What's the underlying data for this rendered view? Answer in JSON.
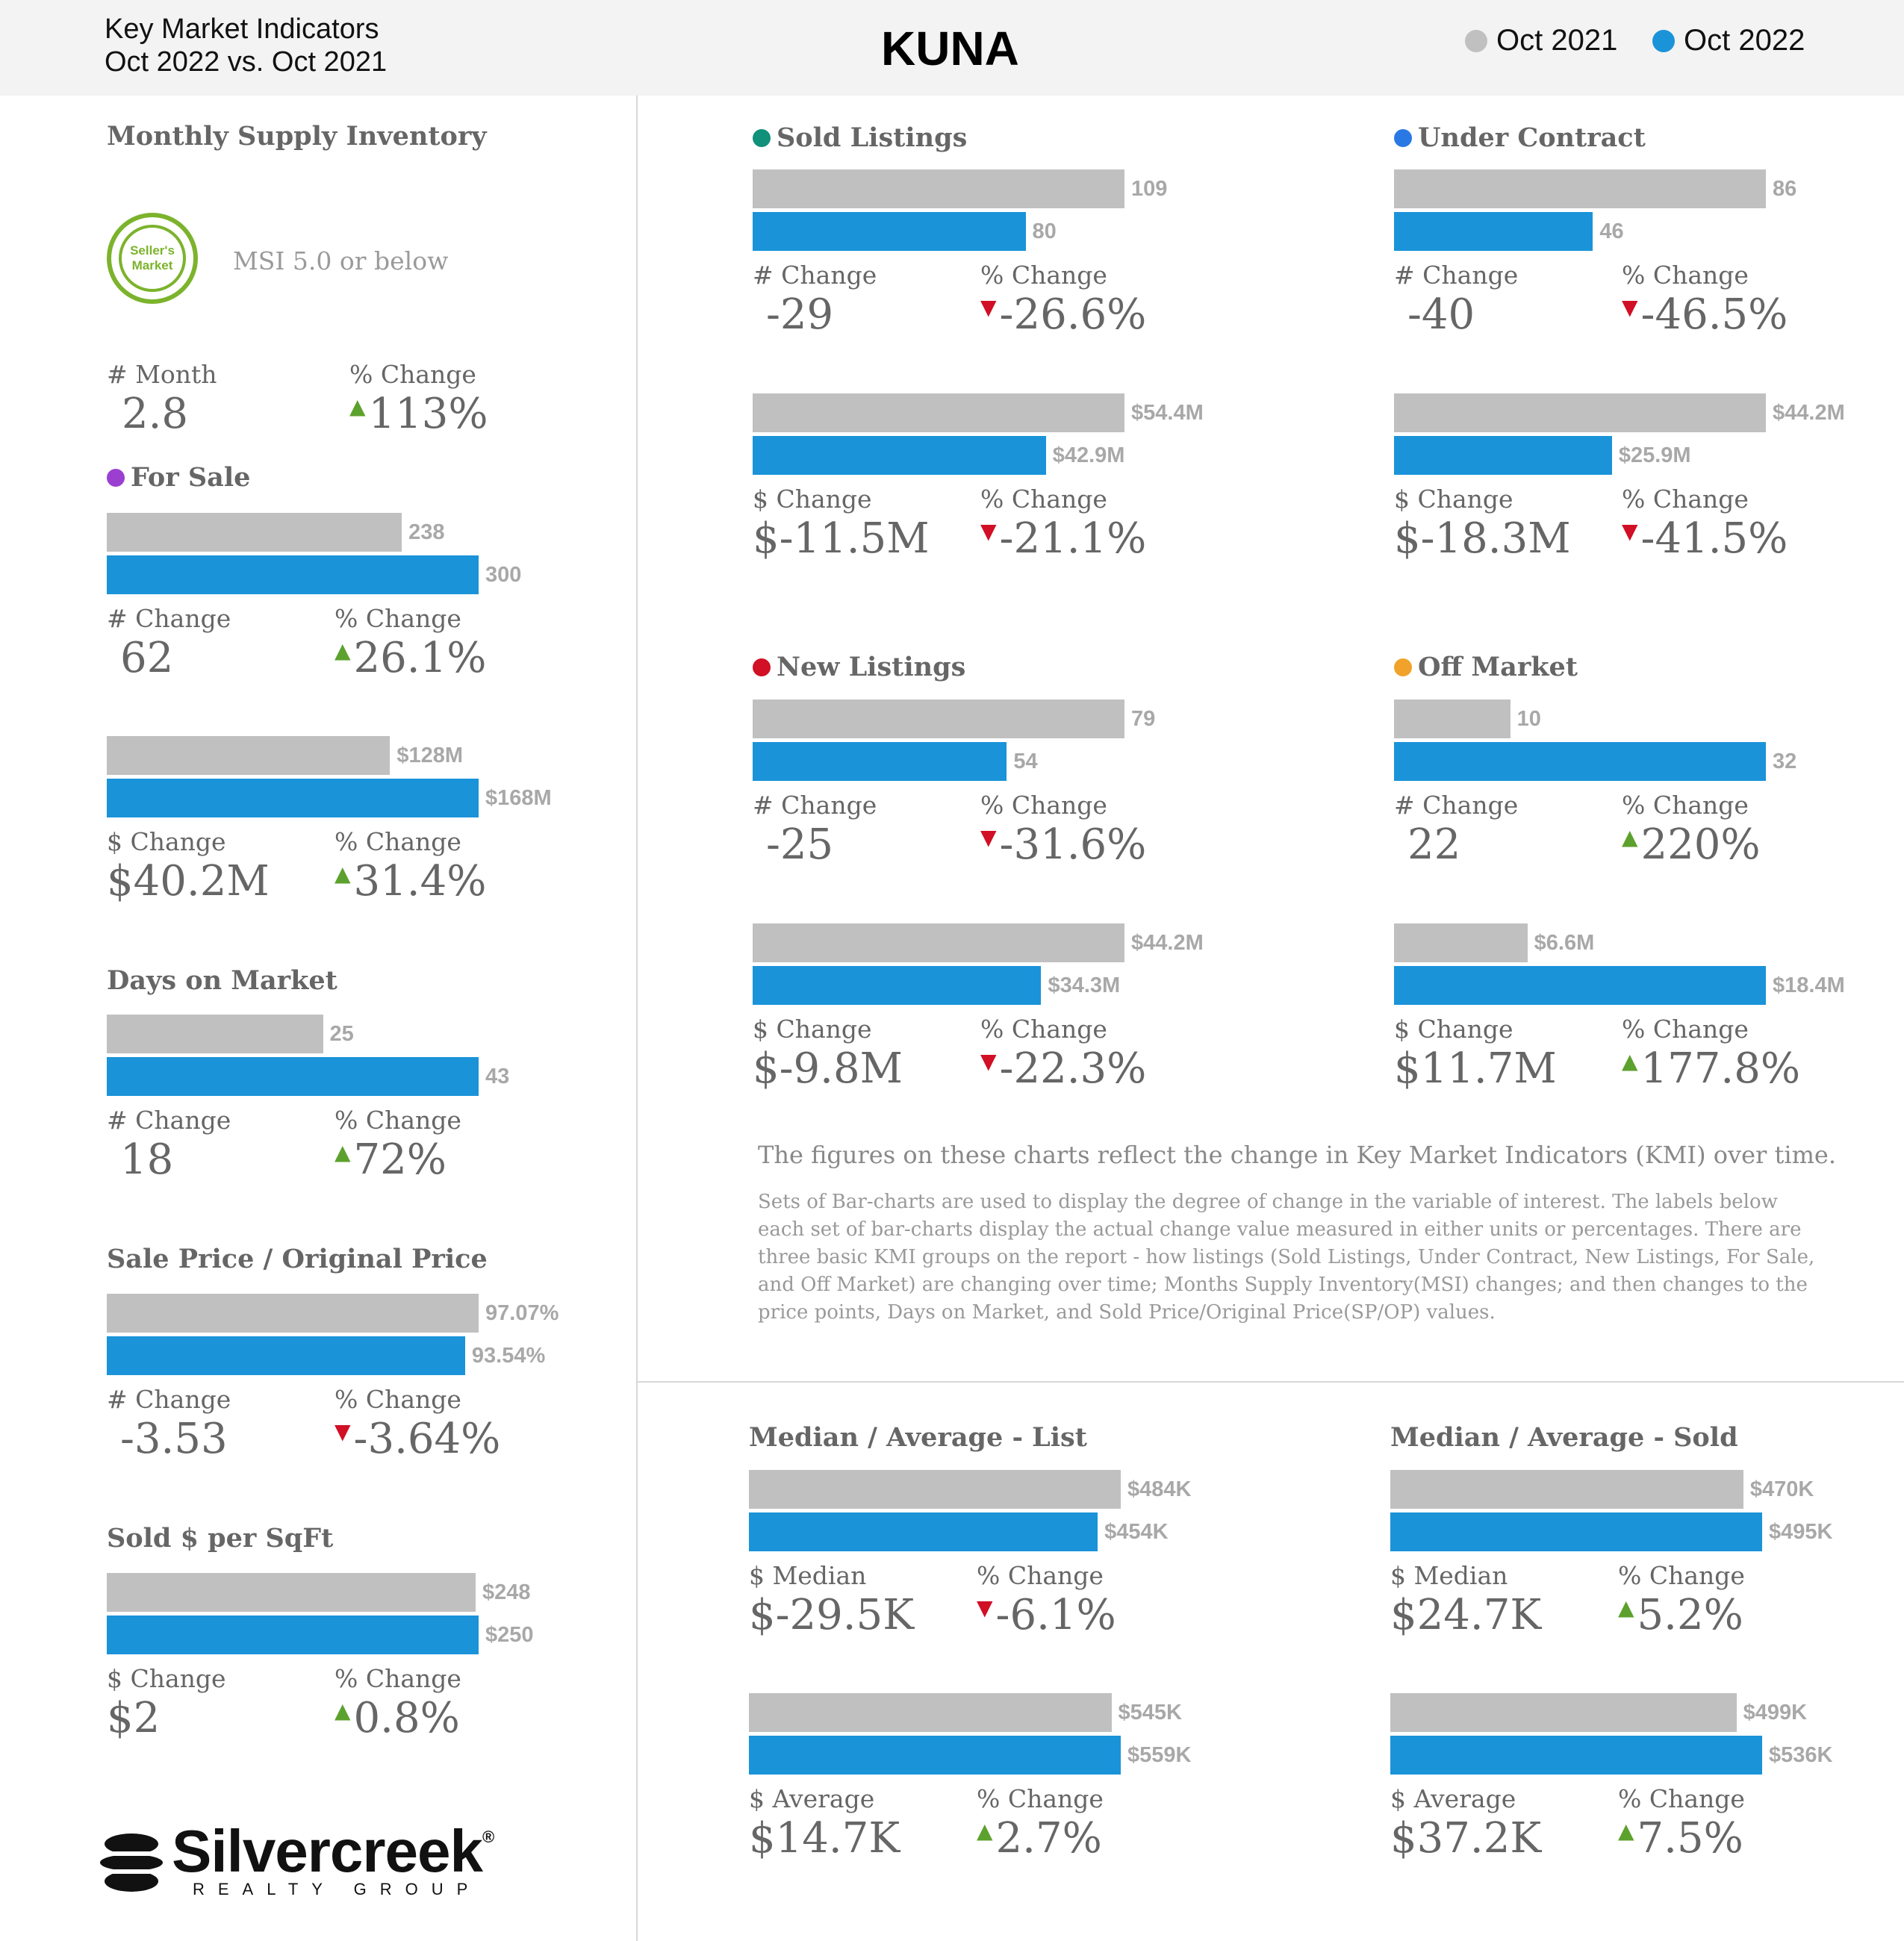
{
  "header": {
    "line1": "Key Market Indicators",
    "line2": "Oct 2022 vs. Oct 2021",
    "title": "KUNA",
    "legend": [
      {
        "label": "Oct 2021",
        "color": "#c0c0c0"
      },
      {
        "label": "Oct 2022",
        "color": "#1a93d9"
      }
    ]
  },
  "colors": {
    "prev": "#c0c0c0",
    "curr": "#1a93d9",
    "up": "#5ca12d",
    "down": "#d10f25"
  },
  "sections": {
    "msi": "Monthly Supply Inventory",
    "for_sale": "For Sale",
    "dom": "Days on Market",
    "sp_op": "Sale Price / Original Price",
    "ppsf": "Sold $ per SqFt",
    "sold": "Sold Listings",
    "under_contract": "Under Contract",
    "new_listings": "New Listings",
    "off_market": "Off Market",
    "list": "Median / Average - List",
    "sold_price": "Median / Average - Sold"
  },
  "section_dots": {
    "for_sale": "#9b3fd1",
    "sold": "#11907a",
    "under_contract": "#2a78e4",
    "new_listings": "#d10f25",
    "off_market": "#f0a22a"
  },
  "msi": {
    "badge": {
      "line1": "Seller's",
      "line2": "Market"
    },
    "badge_text": "MSI 5.0 or below",
    "label_a": "# Month",
    "value_a": "2.8",
    "label_b": "% Change",
    "value_b": "113%",
    "dir": "up"
  },
  "chart_data": [
    {
      "id": "for_sale_units",
      "type": "bar",
      "categories": [
        "Oct 2021",
        "Oct 2022"
      ],
      "values": [
        238,
        300
      ],
      "labels": [
        "238",
        "300"
      ],
      "change_label": "# Change",
      "change": "62",
      "pct_label": "% Change",
      "pct": "26.1%",
      "dir": "up"
    },
    {
      "id": "for_sale_volume",
      "type": "bar",
      "categories": [
        "Oct 2021",
        "Oct 2022"
      ],
      "values": [
        128,
        168
      ],
      "labels": [
        "$128M",
        "$168M"
      ],
      "change_label": "$ Change",
      "change": "$40.2M",
      "pct_label": "% Change",
      "pct": "31.4%",
      "dir": "up"
    },
    {
      "id": "dom",
      "type": "bar",
      "categories": [
        "Oct 2021",
        "Oct 2022"
      ],
      "values": [
        25,
        43
      ],
      "labels": [
        "25",
        "43"
      ],
      "change_label": "# Change",
      "change": "18",
      "pct_label": "% Change",
      "pct": "72%",
      "dir": "up"
    },
    {
      "id": "sp_op",
      "type": "bar",
      "categories": [
        "Oct 2021",
        "Oct 2022"
      ],
      "values": [
        97.07,
        93.54
      ],
      "labels": [
        "97.07%",
        "93.54%"
      ],
      "change_label": "# Change",
      "change": "-3.53",
      "pct_label": "% Change",
      "pct": "-3.64%",
      "dir": "down"
    },
    {
      "id": "ppsf",
      "type": "bar",
      "categories": [
        "Oct 2021",
        "Oct 2022"
      ],
      "values": [
        248,
        250
      ],
      "labels": [
        "$248",
        "$250"
      ],
      "change_label": "$ Change",
      "change": "$2",
      "pct_label": "% Change",
      "pct": "0.8%",
      "dir": "up"
    },
    {
      "id": "sold_units",
      "type": "bar",
      "categories": [
        "Oct 2021",
        "Oct 2022"
      ],
      "values": [
        109,
        80
      ],
      "labels": [
        "109",
        "80"
      ],
      "change_label": "# Change",
      "change": "-29",
      "pct_label": "% Change",
      "pct": "-26.6%",
      "dir": "down"
    },
    {
      "id": "sold_volume",
      "type": "bar",
      "categories": [
        "Oct 2021",
        "Oct 2022"
      ],
      "values": [
        54.4,
        42.9
      ],
      "labels": [
        "$54.4M",
        "$42.9M"
      ],
      "change_label": "$ Change",
      "change": "$-11.5M",
      "pct_label": "% Change",
      "pct": "-21.1%",
      "dir": "down"
    },
    {
      "id": "uc_units",
      "type": "bar",
      "categories": [
        "Oct 2021",
        "Oct 2022"
      ],
      "values": [
        86,
        46
      ],
      "labels": [
        "86",
        "46"
      ],
      "change_label": "# Change",
      "change": "-40",
      "pct_label": "% Change",
      "pct": "-46.5%",
      "dir": "down"
    },
    {
      "id": "uc_volume",
      "type": "bar",
      "categories": [
        "Oct 2021",
        "Oct 2022"
      ],
      "values": [
        44.2,
        25.9
      ],
      "labels": [
        "$44.2M",
        "$25.9M"
      ],
      "change_label": "$ Change",
      "change": "$-18.3M",
      "pct_label": "% Change",
      "pct": "-41.5%",
      "dir": "down"
    },
    {
      "id": "new_units",
      "type": "bar",
      "categories": [
        "Oct 2021",
        "Oct 2022"
      ],
      "values": [
        79,
        54
      ],
      "labels": [
        "79",
        "54"
      ],
      "change_label": "# Change",
      "change": "-25",
      "pct_label": "% Change",
      "pct": "-31.6%",
      "dir": "down"
    },
    {
      "id": "new_volume",
      "type": "bar",
      "categories": [
        "Oct 2021",
        "Oct 2022"
      ],
      "values": [
        44.2,
        34.3
      ],
      "labels": [
        "$44.2M",
        "$34.3M"
      ],
      "change_label": "$ Change",
      "change": "$-9.8M",
      "pct_label": "% Change",
      "pct": "-22.3%",
      "dir": "down"
    },
    {
      "id": "off_units",
      "type": "bar",
      "categories": [
        "Oct 2021",
        "Oct 2022"
      ],
      "values": [
        10,
        32
      ],
      "labels": [
        "10",
        "32"
      ],
      "change_label": "# Change",
      "change": "22",
      "pct_label": "% Change",
      "pct": "220%",
      "dir": "up"
    },
    {
      "id": "off_volume",
      "type": "bar",
      "categories": [
        "Oct 2021",
        "Oct 2022"
      ],
      "values": [
        6.6,
        18.4
      ],
      "labels": [
        "$6.6M",
        "$18.4M"
      ],
      "change_label": "$ Change",
      "change": "$11.7M",
      "pct_label": "% Change",
      "pct": "177.8%",
      "dir": "up"
    },
    {
      "id": "list_median",
      "type": "bar",
      "categories": [
        "Oct 2021",
        "Oct 2022"
      ],
      "values": [
        484,
        454
      ],
      "labels": [
        "$484K",
        "$454K"
      ],
      "change_label": "$ Median",
      "change": "$-29.5K",
      "pct_label": "% Change",
      "pct": "-6.1%",
      "dir": "down"
    },
    {
      "id": "list_average",
      "type": "bar",
      "categories": [
        "Oct 2021",
        "Oct 2022"
      ],
      "values": [
        545,
        559
      ],
      "labels": [
        "$545K",
        "$559K"
      ],
      "change_label": "$ Average",
      "change": "$14.7K",
      "pct_label": "% Change",
      "pct": "2.7%",
      "dir": "up"
    },
    {
      "id": "sold_median",
      "type": "bar",
      "categories": [
        "Oct 2021",
        "Oct 2022"
      ],
      "values": [
        470,
        495
      ],
      "labels": [
        "$470K",
        "$495K"
      ],
      "change_label": "$ Median",
      "change": "$24.7K",
      "pct_label": "% Change",
      "pct": "5.2%",
      "dir": "up"
    },
    {
      "id": "sold_average",
      "type": "bar",
      "categories": [
        "Oct 2021",
        "Oct 2022"
      ],
      "values": [
        499,
        536
      ],
      "labels": [
        "$499K",
        "$536K"
      ],
      "change_label": "$ Average",
      "change": "$37.2K",
      "pct_label": "% Change",
      "pct": "7.5%",
      "dir": "up"
    }
  ],
  "notes": {
    "line1": "The figures on these charts reflect the change in Key Market Indicators (KMI) over time.",
    "line2": "Sets of Bar-charts are used to display the degree of change in the variable of interest. The labels below each set of bar-charts display the actual change value measured in either units or percentages. There are three basic KMI groups on the report - how listings (Sold Listings, Under Contract, New Listings, For Sale, and Off Market) are changing over time; Months Supply Inventory(MSI) changes; and then changes to the price points, Days on Market, and Sold Price/Original Price(SP/OP) values."
  },
  "logo": {
    "name": "Silvercreek",
    "tagline": "REALTY GROUP",
    "mark": "®"
  }
}
